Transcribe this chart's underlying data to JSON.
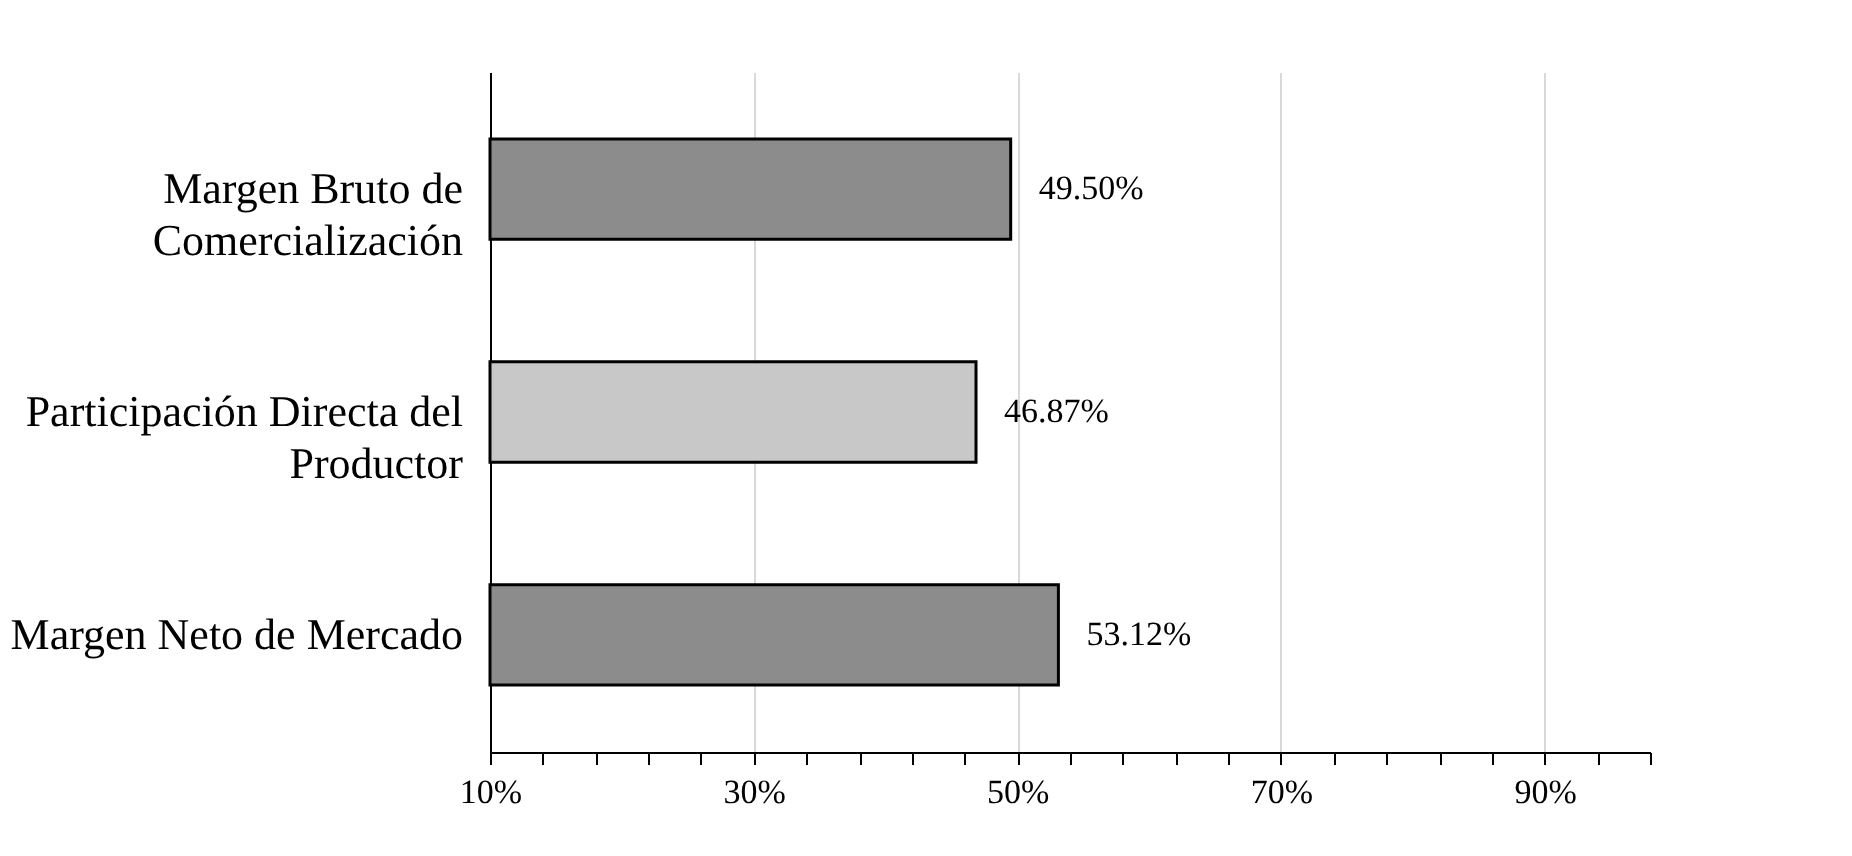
{
  "chart_data": {
    "type": "bar",
    "orientation": "horizontal",
    "categories": [
      "Margen Bruto de Comercialización",
      "Participación Directa del Productor",
      "Margen Neto de Mercado"
    ],
    "values": [
      49.5,
      46.87,
      53.12
    ],
    "colors": [
      "#8c8c8c",
      "#c8c8c8",
      "#8c8c8c"
    ],
    "value_labels": [
      "49.50%",
      "46.87%",
      "53.12%"
    ],
    "xlim": [
      10,
      98
    ],
    "xticks": [
      {
        "value": 10,
        "label": "10%"
      },
      {
        "value": 14,
        "label": null
      },
      {
        "value": 18,
        "label": null
      },
      {
        "value": 22,
        "label": null
      },
      {
        "value": 26,
        "label": null
      },
      {
        "value": 30,
        "label": "30%"
      },
      {
        "value": 34,
        "label": null
      },
      {
        "value": 38,
        "label": null
      },
      {
        "value": 42,
        "label": null
      },
      {
        "value": 46,
        "label": null
      },
      {
        "value": 50,
        "label": "50%"
      },
      {
        "value": 54,
        "label": null
      },
      {
        "value": 58,
        "label": null
      },
      {
        "value": 62,
        "label": null
      },
      {
        "value": 66,
        "label": null
      },
      {
        "value": 70,
        "label": "70%"
      },
      {
        "value": 74,
        "label": null
      },
      {
        "value": 78,
        "label": null
      },
      {
        "value": 82,
        "label": null
      },
      {
        "value": 86,
        "label": null
      },
      {
        "value": 90,
        "label": "90%"
      },
      {
        "value": 94,
        "label": null
      },
      {
        "value": 98,
        "label": null
      }
    ],
    "grid": "x"
  }
}
